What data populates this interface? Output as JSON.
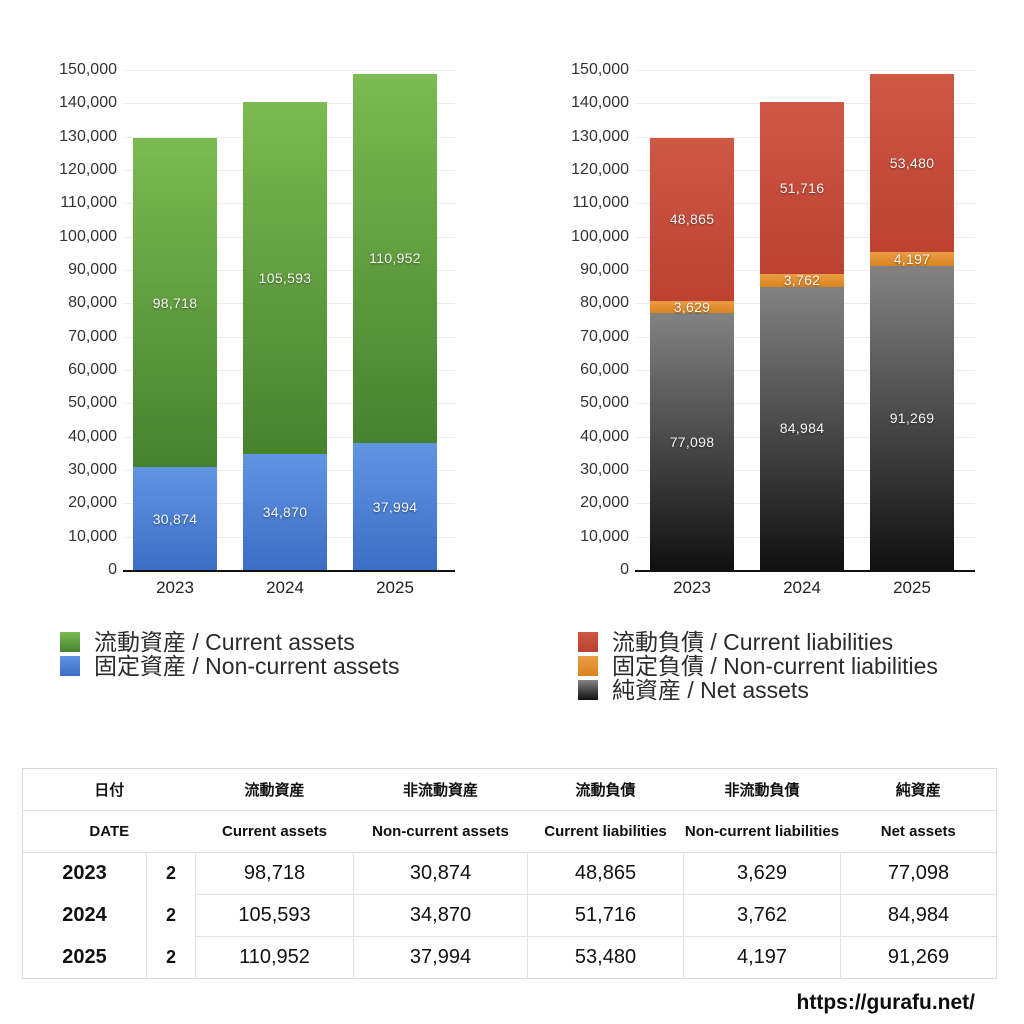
{
  "chart_data": [
    {
      "type": "bar",
      "stacked": true,
      "title": "",
      "categories": [
        "2023",
        "2024",
        "2025"
      ],
      "series": [
        {
          "name": "流動資産 / Current assets",
          "values": [
            98718,
            105593,
            110952
          ],
          "labels": [
            "98,718",
            "105,593",
            "110,952"
          ],
          "color_top": "#7cba52",
          "color_bottom": "#47822e"
        },
        {
          "name": "固定資産 / Non-current assets",
          "values": [
            30874,
            34870,
            37994
          ],
          "labels": [
            "30,874",
            "34,870",
            "37,994"
          ],
          "color_top": "#6095e2",
          "color_bottom": "#3c6ec6"
        }
      ],
      "ylim": [
        0,
        150000
      ],
      "ytick_step": 10000,
      "yticks": [
        "0",
        "10,000",
        "20,000",
        "30,000",
        "40,000",
        "50,000",
        "60,000",
        "70,000",
        "80,000",
        "90,000",
        "100,000",
        "110,000",
        "120,000",
        "130,000",
        "140,000",
        "150,000"
      ],
      "grid": true,
      "legend_position": "bottom-left"
    },
    {
      "type": "bar",
      "stacked": true,
      "title": "",
      "categories": [
        "2023",
        "2024",
        "2025"
      ],
      "series": [
        {
          "name": "流動負債 / Current liabilities",
          "values": [
            48865,
            51716,
            53480
          ],
          "labels": [
            "48,865",
            "51,716",
            "53,480"
          ],
          "color_top": "#ce5845",
          "color_bottom": "#bc4130"
        },
        {
          "name": "固定負債 / Non-current liabilities",
          "values": [
            3629,
            3762,
            4197
          ],
          "labels": [
            "3,629",
            "3,762",
            "4,197"
          ],
          "color_top": "#eb9d45",
          "color_bottom": "#d9831f"
        },
        {
          "name": "純資産 / Net assets",
          "values": [
            77098,
            84984,
            91269
          ],
          "labels": [
            "77,098",
            "84,984",
            "91,269"
          ],
          "color_top": "#828282",
          "color_bottom": "#101010"
        }
      ],
      "ylim": [
        0,
        150000
      ],
      "ytick_step": 10000,
      "yticks": [
        "0",
        "10,000",
        "20,000",
        "30,000",
        "40,000",
        "50,000",
        "60,000",
        "70,000",
        "80,000",
        "90,000",
        "100,000",
        "110,000",
        "120,000",
        "130,000",
        "140,000",
        "150,000"
      ],
      "grid": true,
      "legend_position": "bottom-left"
    }
  ],
  "table": {
    "columns_ja": [
      "日付",
      "流動資産",
      "非流動資産",
      "流動負債",
      "非流動負債",
      "純資産"
    ],
    "columns_en": [
      "DATE",
      "Current assets",
      "Non-current assets",
      "Current liabilities",
      "Non-current liabilities",
      "Net assets"
    ],
    "rows": [
      {
        "year": "2023",
        "month": "2",
        "values": [
          "98,718",
          "30,874",
          "48,865",
          "3,629",
          "77,098"
        ]
      },
      {
        "year": "2024",
        "month": "2",
        "values": [
          "105,593",
          "34,870",
          "51,716",
          "3,762",
          "84,984"
        ]
      },
      {
        "year": "2025",
        "month": "2",
        "values": [
          "110,952",
          "37,994",
          "53,480",
          "4,197",
          "91,269"
        ]
      }
    ]
  },
  "footer": {
    "url": "https://gurafu.net/"
  }
}
